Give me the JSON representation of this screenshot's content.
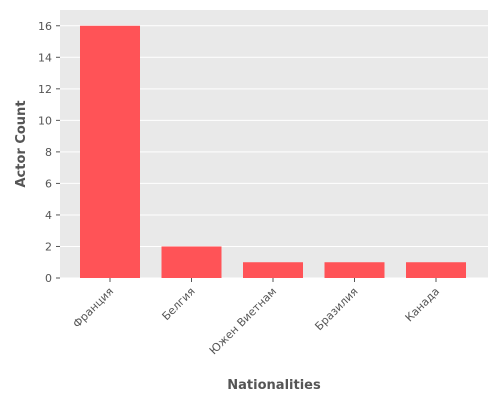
{
  "chart_data": {
    "type": "bar",
    "title": "",
    "xlabel": "Nationalities",
    "ylabel": "Actor Count",
    "categories": [
      "Франция",
      "Белгия",
      "Южен Виетнам",
      "Бразилия",
      "Канада"
    ],
    "values": [
      16,
      2,
      1,
      1,
      1
    ],
    "ylim": [
      0,
      17
    ],
    "yticks": [
      0,
      2,
      4,
      6,
      8,
      10,
      12,
      14,
      16
    ],
    "grid": true,
    "legend": "none",
    "colors": {
      "bar": "#ff5357",
      "plot_background": "#e9e9e9",
      "grid": "#ffffff",
      "text": "#555555"
    }
  }
}
